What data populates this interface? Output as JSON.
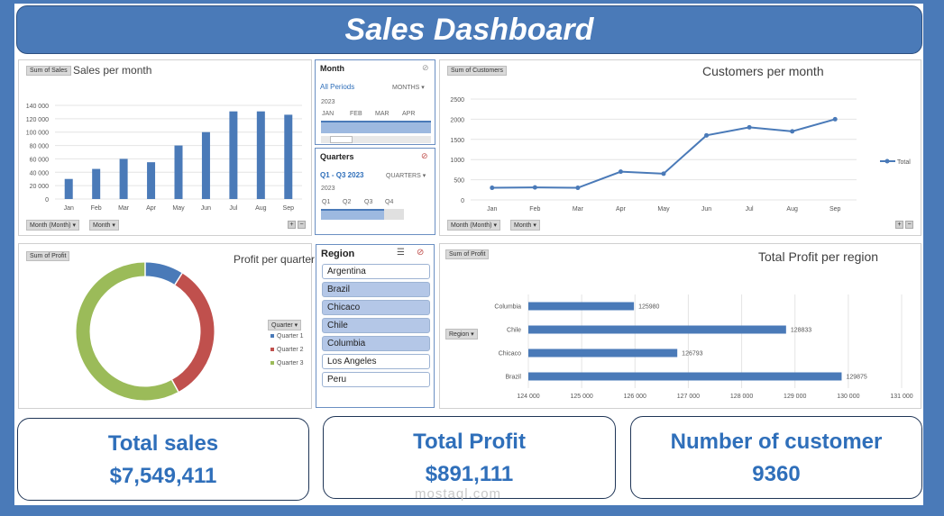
{
  "dashboard": {
    "title": "Sales Dashboard"
  },
  "colors": {
    "frame": "#4a7ab8",
    "bar": "#4a7ab8",
    "q1": "#4a7ab8",
    "q2": "#c0504d",
    "q3": "#9bbb59"
  },
  "sales_panel": {
    "pill": "Sum of Sales",
    "filter1": "Month (Month)",
    "filter2": "Month"
  },
  "customers_panel": {
    "pill": "Sum of Customers",
    "filter1": "Month (Month)",
    "filter2": "Month"
  },
  "profit_panel": {
    "pill": "Sum of Profit",
    "legend_title": "Quarter"
  },
  "region_panel": {
    "pill": "Sum of Profit",
    "filter": "Region"
  },
  "month_slicer": {
    "title": "Month",
    "all": "All Periods",
    "unit": "MONTHS",
    "year": "2023",
    "months": [
      "JAN",
      "FEB",
      "MAR",
      "APR"
    ]
  },
  "quarter_slicer": {
    "title": "Quarters",
    "range": "Q1 - Q3 2023",
    "unit": "QUARTERS",
    "year": "2023",
    "quarters": [
      "Q1",
      "Q2",
      "Q3",
      "Q4"
    ]
  },
  "region_slicer": {
    "title": "Region",
    "items": [
      {
        "label": "Argentina",
        "selected": false
      },
      {
        "label": "Brazil",
        "selected": true
      },
      {
        "label": "Chicaco",
        "selected": true
      },
      {
        "label": "Chile",
        "selected": true
      },
      {
        "label": "Columbia",
        "selected": true
      },
      {
        "label": "Los Angeles",
        "selected": false
      },
      {
        "label": "Peru",
        "selected": false
      }
    ]
  },
  "kpis": {
    "sales_label": "Total sales",
    "sales_value": "$7,549,411",
    "profit_label": "Total Profit",
    "profit_value": "$891,111",
    "customers_label": "Number of customer",
    "customers_value": "9360"
  },
  "watermark": "mostaql.com",
  "chart_data": [
    {
      "type": "bar",
      "title": "Sales per month",
      "categories": [
        "Jan",
        "Feb",
        "Mar",
        "Apr",
        "May",
        "Jun",
        "Jul",
        "Aug",
        "Sep"
      ],
      "values": [
        30000,
        45000,
        60000,
        55000,
        80000,
        100000,
        131000,
        131000,
        126000
      ],
      "ylim": [
        0,
        140000
      ],
      "yticks": [
        "0",
        "20 000",
        "40 000",
        "60 000",
        "80 000",
        "100 000",
        "120 000",
        "140 000"
      ]
    },
    {
      "type": "line",
      "title": "Customers per month",
      "categories": [
        "Jan",
        "Feb",
        "Mar",
        "Apr",
        "May",
        "Jun",
        "Jul",
        "Aug",
        "Sep"
      ],
      "values": [
        300,
        310,
        300,
        700,
        650,
        1600,
        1800,
        1700,
        2000
      ],
      "ylim": [
        0,
        2500
      ],
      "yticks": [
        "0",
        "500",
        "1000",
        "1500",
        "2000",
        "2500"
      ],
      "legend": "Total"
    },
    {
      "type": "pie",
      "title": "Profit per quarter",
      "labels": [
        "Quarter 1",
        "Quarter 2",
        "Quarter 3"
      ],
      "values": [
        9,
        33,
        58
      ]
    },
    {
      "type": "bar",
      "orientation": "horizontal",
      "title": "Total Profit per region",
      "categories": [
        "Columbia",
        "Chile",
        "Chicaco",
        "Brazil"
      ],
      "values": [
        125980,
        128833,
        126793,
        129875
      ],
      "labels": [
        "125980",
        "128833",
        "126793",
        "129875"
      ],
      "xlim": [
        124000,
        131000
      ],
      "xticks": [
        "124 000",
        "125 000",
        "126 000",
        "127 000",
        "128 000",
        "129 000",
        "130 000",
        "131 000"
      ]
    }
  ]
}
